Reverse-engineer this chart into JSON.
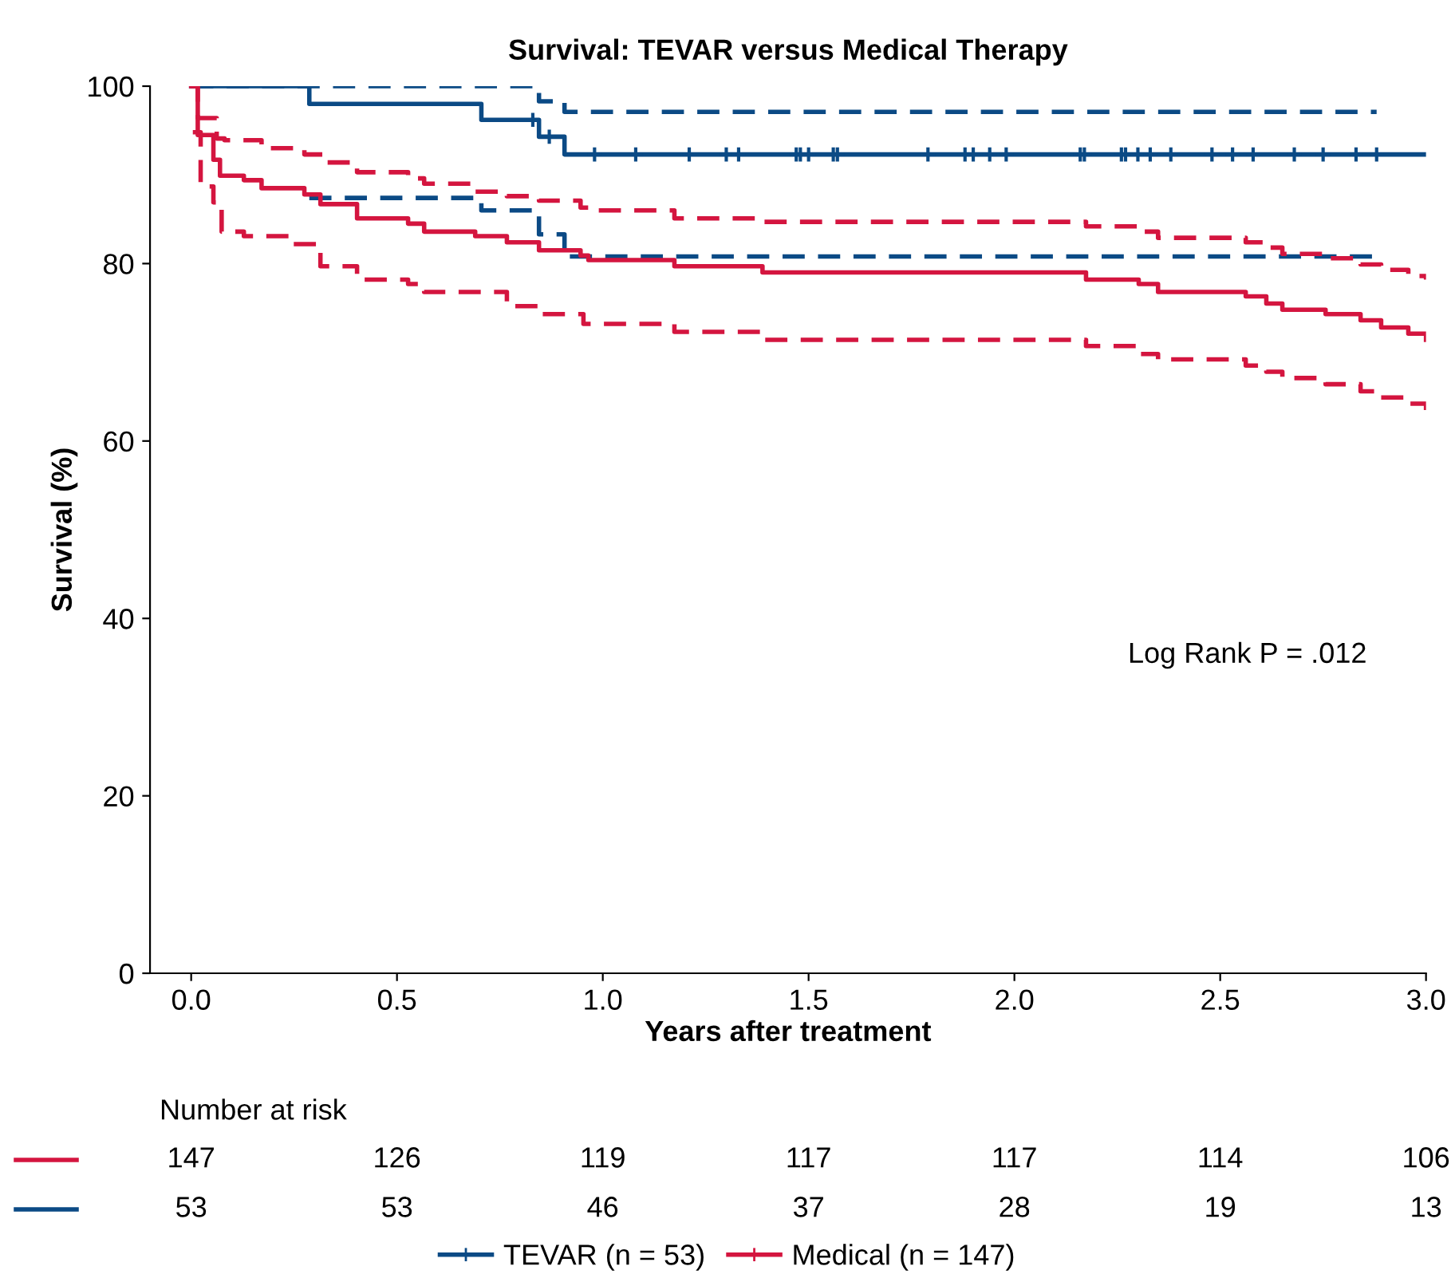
{
  "chart_data": {
    "type": "step",
    "title": "Survival: TEVAR versus Medical Therapy",
    "xlabel": "Years after treatment",
    "ylabel": "Survival (%)",
    "xlim": [
      -0.1,
      3.0
    ],
    "xticks": [
      {
        "value": 0,
        "label": "0.0"
      },
      0.5,
      {
        "value": 1,
        "label": "1.0"
      },
      1.5,
      {
        "value": 2,
        "label": "2.0"
      },
      2.5,
      {
        "value": 3,
        "label": "3.0"
      }
    ],
    "ylim": [
      0,
      100
    ],
    "yticks": [
      0,
      20,
      40,
      60,
      80,
      100
    ],
    "grid": false,
    "legend": "bottom",
    "series": [
      {
        "name": "TEVAR (n = 53)",
        "color": "#0b4a85",
        "line_style": "solid",
        "x": [
          0,
          0.287,
          0.705,
          0.845,
          0.907,
          3.0
        ],
        "values": [
          100,
          98.0,
          96.2,
          94.3,
          92.3,
          92.3
        ]
      },
      {
        "color": "#0b4a85",
        "line_style": "dashed",
        "x": [
          0,
          0.845,
          0.907,
          2.88
        ],
        "values": [
          100,
          98.3,
          97.1,
          97.1
        ]
      },
      {
        "color": "#0b4a85",
        "line_style": "dashed",
        "x": [
          0.287,
          0.705,
          0.845,
          0.907,
          2.88
        ],
        "values": [
          87.4,
          86.0,
          83.3,
          80.8,
          80.8
        ]
      },
      {
        "name": "Medical (n = 147)",
        "color": "#d4153f",
        "line_style": "solid",
        "x": [
          0,
          0.016,
          0.054,
          0.07,
          0.128,
          0.171,
          0.275,
          0.314,
          0.403,
          0.527,
          0.566,
          0.69,
          0.767,
          0.845,
          0.946,
          0.965,
          1.174,
          1.388,
          2.174,
          2.302,
          2.349,
          2.562,
          2.612,
          2.651,
          2.756,
          2.841,
          2.891,
          2.957,
          3.0
        ],
        "values": [
          100,
          94.5,
          91.7,
          89.9,
          89.4,
          88.5,
          87.8,
          86.7,
          85.1,
          84.5,
          83.6,
          83.1,
          82.4,
          81.5,
          80.9,
          80.4,
          79.7,
          79.0,
          78.2,
          77.7,
          76.8,
          76.3,
          75.5,
          74.8,
          74.3,
          73.6,
          72.8,
          72.1,
          71.4
        ]
      },
      {
        "color": "#d4153f",
        "line_style": "dashed",
        "x": [
          0,
          0.016,
          0.062,
          0.081,
          0.171,
          0.275,
          0.322,
          0.403,
          0.527,
          0.566,
          0.69,
          0.767,
          0.845,
          0.946,
          0.973,
          1.174,
          1.388,
          2.174,
          2.302,
          2.349,
          2.562,
          2.612,
          2.651,
          2.756,
          2.841,
          2.891,
          2.957,
          3.0
        ],
        "values": [
          100,
          96.4,
          94.1,
          93.9,
          93.0,
          92.3,
          91.4,
          90.3,
          89.6,
          89.0,
          88.1,
          87.6,
          87.1,
          86.3,
          86.0,
          85.1,
          84.7,
          84.2,
          83.6,
          82.9,
          82.4,
          81.8,
          81.1,
          80.6,
          79.9,
          79.3,
          78.6,
          78.2
        ]
      },
      {
        "color": "#d4153f",
        "line_style": "dashed",
        "x": [
          0.004,
          0.023,
          0.054,
          0.074,
          0.128,
          0.248,
          0.314,
          0.403,
          0.527,
          0.566,
          0.767,
          0.845,
          0.953,
          1.174,
          1.388,
          2.174,
          2.302,
          2.349,
          2.562,
          2.612,
          2.651,
          2.756,
          2.841,
          2.891,
          2.957,
          3.0
        ],
        "values": [
          94.8,
          88.7,
          86.9,
          83.6,
          83.1,
          82.2,
          79.7,
          78.2,
          77.7,
          76.8,
          75.2,
          74.3,
          73.2,
          72.3,
          71.4,
          70.7,
          69.8,
          69.2,
          68.5,
          67.8,
          67.1,
          66.4,
          65.6,
          64.9,
          64.2,
          63.5
        ]
      },
      {
        "type": "scatter",
        "color": "#0b4a85",
        "marker": "cross",
        "x": [
          0.83,
          0.87,
          0.98,
          1.08,
          1.21,
          1.3,
          1.33,
          1.47,
          1.48,
          1.5,
          1.56,
          1.57,
          1.79,
          1.88,
          1.9,
          1.94,
          1.98,
          2.16,
          2.17,
          2.26,
          2.27,
          2.3,
          2.33,
          2.38,
          2.48,
          2.53,
          2.58,
          2.68,
          2.75,
          2.83,
          2.88
        ],
        "values": [
          96.2,
          94.3,
          92.3,
          92.3,
          92.3,
          92.3,
          92.3,
          92.3,
          92.3,
          92.3,
          92.3,
          92.3,
          92.3,
          92.3,
          92.3,
          92.3,
          92.3,
          92.3,
          92.3,
          92.3,
          92.3,
          92.3,
          92.3,
          92.3,
          92.3,
          92.3,
          92.3,
          92.3,
          92.3,
          92.3,
          92.3
        ]
      }
    ],
    "annotations": [
      "Log Rank P = .012",
      "Number at risk",
      "147",
      "126",
      "119",
      "117",
      "117",
      "114",
      "106",
      "53",
      "53",
      "46",
      "37",
      "28",
      "19",
      "13"
    ]
  }
}
